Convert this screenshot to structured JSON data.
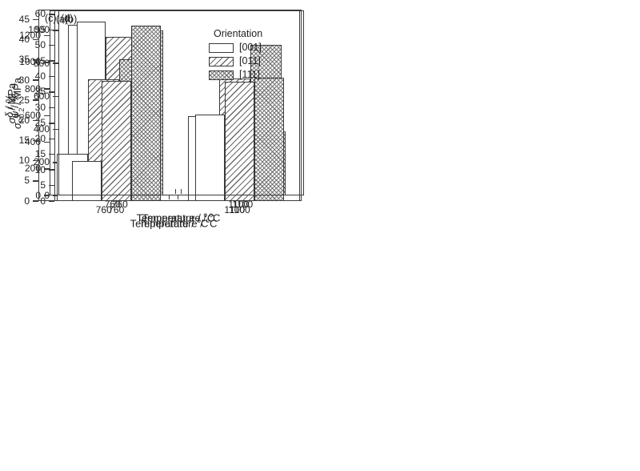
{
  "figure": {
    "background": "#ffffff",
    "line_color": "#3a3a3a",
    "hatch_color": "#6b6b6b"
  },
  "legend": {
    "title": "Orientation",
    "position": "top-right-inside-panel-a",
    "items": [
      {
        "label": "[001]",
        "pattern": "plain"
      },
      {
        "label": "[011]",
        "pattern": "diagonal-hatch"
      },
      {
        "label": "[111]",
        "pattern": "cross-hatch"
      }
    ]
  },
  "chart_data": [
    {
      "type": "bar",
      "tag": "(a)",
      "ylabel": {
        "symbol": "σ",
        "subscript": "b",
        "unit": " / MPa"
      },
      "xlabel": {
        "pre": "Temperature / ",
        "sup": "o",
        "post": "C"
      },
      "categories": [
        "760",
        "1100"
      ],
      "series": [
        {
          "name": "[001]",
          "pattern": "plain",
          "values": [
            1280,
            520
          ]
        },
        {
          "name": "[011]",
          "pattern": "diagonal-hatch",
          "values": [
            1030,
            505
          ]
        },
        {
          "name": "[111]",
          "pattern": "cross-hatch",
          "values": [
            1140,
            450
          ]
        }
      ],
      "ylim": [
        0,
        1390
      ],
      "yticks": [
        0,
        200,
        400,
        600,
        800,
        1000,
        1200
      ],
      "grid": false,
      "legend_shown": true
    },
    {
      "type": "bar",
      "tag": "(b)",
      "ylabel": {
        "symbol": "σ",
        "subscript": "P0.2",
        "unit": " / MPa"
      },
      "xlabel": {
        "pre": "Temperature / ",
        "sup": "o",
        "post": "C"
      },
      "categories": [
        "760",
        "1100"
      ],
      "series": [
        {
          "name": "[001]",
          "pattern": "plain",
          "values": [
            1050,
            440
          ]
        },
        {
          "name": "[011]",
          "pattern": "diagonal-hatch",
          "values": [
            960,
            460
          ]
        },
        {
          "name": "[111]",
          "pattern": "cross-hatch",
          "values": [
            1000,
            390
          ]
        }
      ],
      "ylim": [
        0,
        1120
      ],
      "yticks": [
        0,
        200,
        400,
        600,
        800,
        1000
      ],
      "grid": false,
      "legend_shown": false
    },
    {
      "type": "bar",
      "tag": "(c)",
      "ylabel": {
        "symbol": "δ",
        "subscript": "",
        "unit": " / %"
      },
      "xlabel": {
        "pre": "Temperature / ",
        "sup": "o",
        "post": "C"
      },
      "categories": [
        "760",
        "1100"
      ],
      "series": [
        {
          "name": "[001]",
          "pattern": "plain",
          "values": [
            11.8,
            21.1
          ]
        },
        {
          "name": "[011]",
          "pattern": "diagonal-hatch",
          "values": [
            30.3,
            30.4
          ]
        },
        {
          "name": "[111]",
          "pattern": "cross-hatch",
          "values": [
            35.1,
            38.7
          ]
        }
      ],
      "ylim": [
        0,
        47.5
      ],
      "yticks": [
        0,
        5,
        10,
        15,
        20,
        25,
        30,
        35,
        40,
        45
      ],
      "grid": false,
      "legend_shown": false
    },
    {
      "type": "bar",
      "tag": "(d)",
      "ylabel": {
        "symbol": "ψ",
        "subscript": "",
        "unit": " / %"
      },
      "xlabel": {
        "pre": "Temperature / ",
        "sup": "o",
        "post": "C"
      },
      "categories": [
        "760",
        "1100"
      ],
      "series": [
        {
          "name": "[001]",
          "pattern": "plain",
          "values": [
            12.8,
            27.8
          ]
        },
        {
          "name": "[011]",
          "pattern": "diagonal-hatch",
          "values": [
            38.6,
            38.3
          ]
        },
        {
          "name": "[111]",
          "pattern": "cross-hatch",
          "values": [
            56.4,
            39.5
          ]
        }
      ],
      "ylim": [
        0,
        61.5
      ],
      "yticks": [
        0,
        5,
        10,
        15,
        20,
        25,
        30,
        35,
        40,
        45,
        50,
        55,
        60
      ],
      "grid": false,
      "legend_shown": false
    }
  ]
}
